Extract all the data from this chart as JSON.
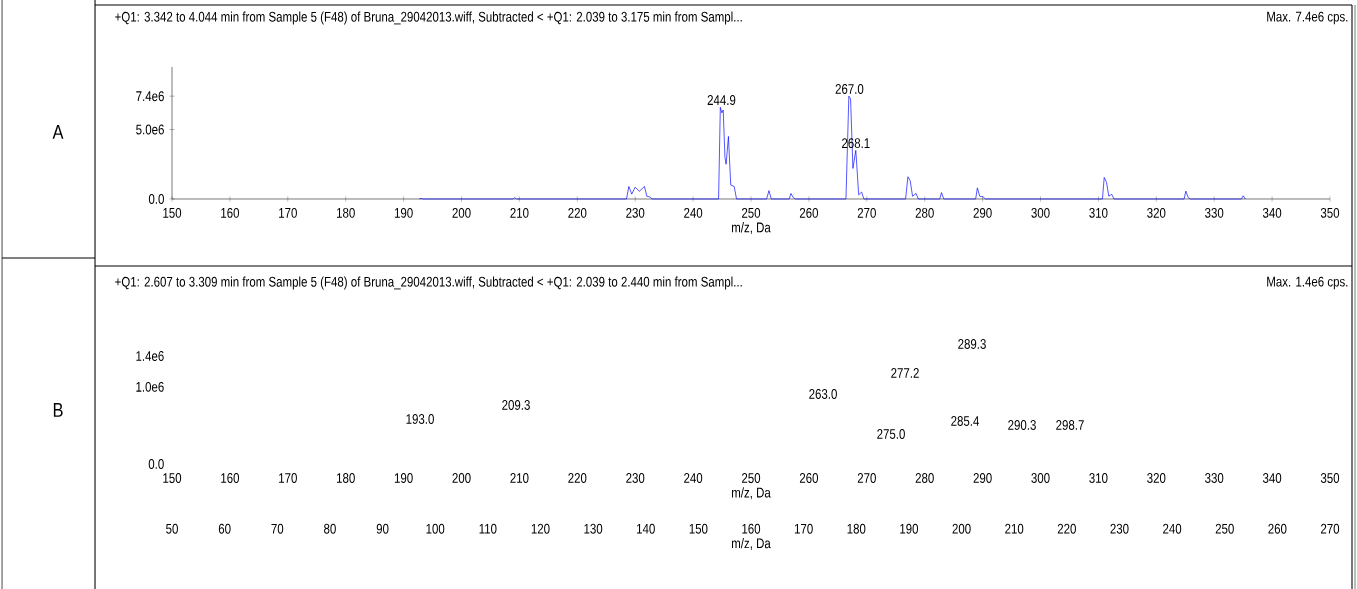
{
  "chart_data": [
    {
      "type": "line",
      "title": "+Q1: 3.342 to 4.044 min from Sample 5 (F48) of Bruna_29042013.wiff, Subtracted < +Q1: 2.039 to 3.175 min from Sampl...",
      "xlabel": "m/z, Da",
      "annotations": [
        "A",
        "Max. 7.4e6 cps.",
        {
          "text": "244.9",
          "x": 244.9,
          "y": 6600000
        },
        {
          "text": "267.0",
          "x": 267.0,
          "y": 7400000
        },
        {
          "text": "268.1",
          "x": 268.1,
          "y": 3500000
        }
      ],
      "xlim": [
        150,
        350
      ],
      "xticks": [
        150,
        160,
        170,
        180,
        190,
        200,
        210,
        220,
        230,
        240,
        250,
        260,
        270,
        280,
        290,
        300,
        310,
        320,
        330,
        340,
        350
      ],
      "ylim": [
        0,
        9500000
      ],
      "yticks": [
        {
          "value": 0,
          "label": "0.0"
        },
        {
          "value": 5000000,
          "label": "5.0e6"
        },
        {
          "value": 7400000,
          "label": "7.4e6"
        }
      ],
      "series": [
        {
          "color": "#0000ff",
          "x": [
            192.7,
            193.0,
            193.3,
            208.9,
            209.2,
            209.5,
            228.5,
            228.9,
            229.4,
            230.0,
            230.7,
            231.6,
            232.0,
            232.5,
            232.9,
            244.4,
            244.7,
            244.95,
            245.2,
            245.5,
            245.7,
            246.1,
            246.5,
            247.1,
            247.5,
            252.7,
            253.1,
            253.5,
            256.6,
            256.9,
            257.3,
            257.7,
            266.4,
            266.9,
            267.2,
            267.6,
            268.1,
            268.6,
            269.1,
            269.5,
            276.7,
            277.1,
            277.5,
            277.9,
            278.5,
            278.9,
            282.6,
            282.9,
            283.3,
            288.8,
            289.1,
            289.5,
            290.1,
            290.5,
            310.7,
            311.0,
            311.4,
            311.8,
            312.3,
            312.7,
            324.8,
            325.1,
            325.5,
            325.9,
            334.7,
            335.0,
            335.4
          ],
          "values": [
            0,
            50000,
            0,
            0,
            100000,
            0,
            0,
            900000,
            350000,
            850000,
            550000,
            900000,
            200000,
            150000,
            0,
            0,
            6600000,
            6200000,
            6400000,
            3000000,
            2500000,
            4500000,
            1000000,
            900000,
            0,
            0,
            600000,
            0,
            0,
            400000,
            100000,
            0,
            0,
            7400000,
            7200000,
            2200000,
            3500000,
            300000,
            500000,
            0,
            0,
            1600000,
            1300000,
            200000,
            400000,
            0,
            0,
            460000,
            0,
            0,
            800000,
            200000,
            150000,
            0,
            0,
            1550000,
            1200000,
            200000,
            340000,
            0,
            0,
            570000,
            100000,
            0,
            0,
            230000,
            0
          ]
        }
      ]
    },
    {
      "type": "line",
      "title": "+Q1: 2.607 to 3.309 min from Sample 5 (F48) of Bruna_29042013.wiff, Subtracted < +Q1: 2.039 to 2.440 min from Sampl...",
      "xlabel": "m/z, Da",
      "annotations": [
        "B",
        "Max. 1.4e6 cps.",
        "193.0",
        "209.3",
        "263.0",
        "275.0",
        "277.2",
        "285.4",
        "289.3",
        "290.3",
        "298.7"
      ],
      "xlim": [
        150,
        350
      ],
      "xticks": [
        150,
        160,
        170,
        180,
        190,
        200,
        210,
        220,
        230,
        240,
        250,
        260,
        270,
        280,
        290,
        300,
        310,
        320,
        330,
        340,
        350
      ],
      "ylim": [
        0,
        1400000
      ],
      "yticks": [
        {
          "value": 0,
          "label": "0.0"
        },
        {
          "value": 1000000,
          "label": "1.0e6"
        },
        {
          "value": 1400000,
          "label": "1.4e6"
        }
      ],
      "x2label": "m/z, Da",
      "x2lim": [
        50,
        270
      ],
      "x2ticks": [
        50,
        60,
        70,
        80,
        90,
        100,
        110,
        120,
        130,
        140,
        150,
        160,
        170,
        180,
        190,
        200,
        210,
        220,
        230,
        240,
        250,
        260,
        270
      ]
    }
  ]
}
